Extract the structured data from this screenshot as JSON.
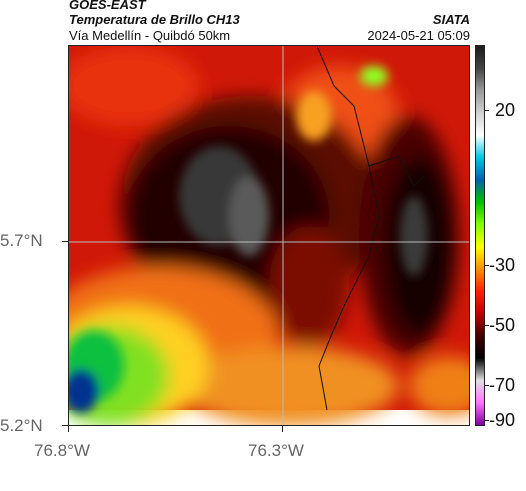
{
  "header": {
    "satellite": "GOES-EAST",
    "product": "Temperatura de Brillo CH13",
    "region": "Vía Medellín - Quibdó 50km",
    "agency": "SIATA",
    "datetime": "2024-05-21 05:09"
  },
  "map": {
    "lat_ticks": [
      "5.7°N",
      "5.2°N"
    ],
    "lon_ticks": [
      "76.8°W",
      "76.3°W"
    ],
    "gridlines": true
  },
  "colorbar": {
    "tick_labels": [
      "20",
      "-30",
      "-50",
      "-70",
      "-90"
    ],
    "stops": [
      "#1a1a1a",
      "#444444",
      "#9a9a9a",
      "#d0d0d0",
      "#ffffff",
      "#00c8e0",
      "#0060b0",
      "#00c000",
      "#80ff00",
      "#ffff00",
      "#ff9000",
      "#ff2000",
      "#c00000",
      "#400000",
      "#000000",
      "#e0e0e0",
      "#ff70ff",
      "#8000a0"
    ]
  }
}
